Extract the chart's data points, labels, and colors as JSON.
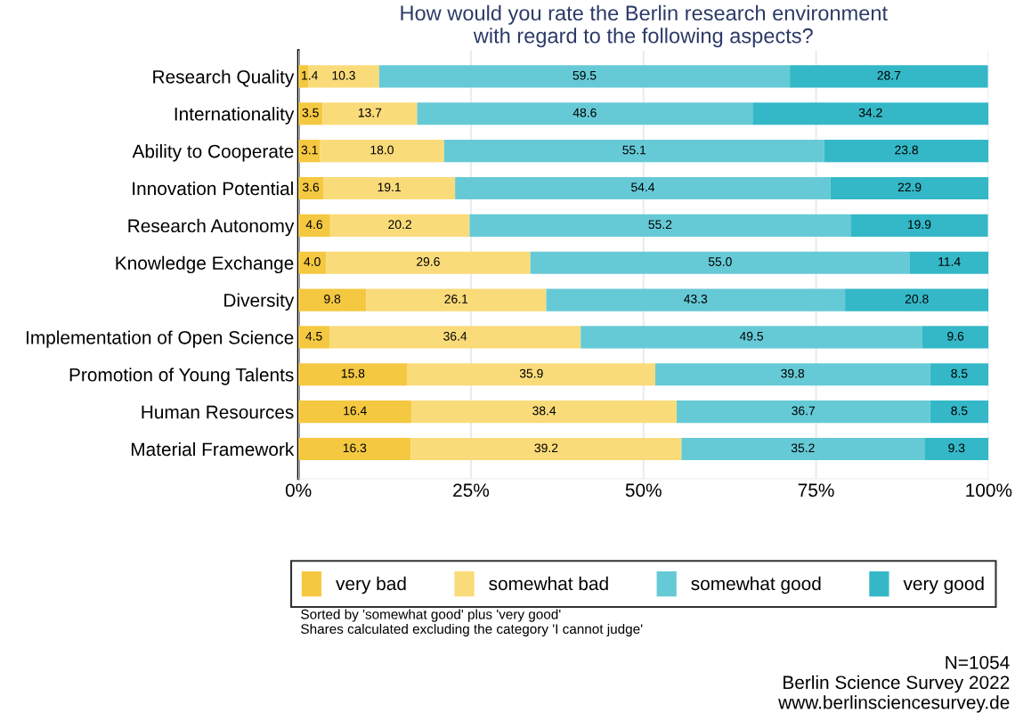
{
  "chart_data": {
    "type": "bar",
    "orientation": "horizontal",
    "stacked": true,
    "title": "How would you rate the Berlin research environment\nwith regard to the following aspects?",
    "categories": [
      "Research Quality",
      "Internationality",
      "Ability to Cooperate",
      "Innovation Potential",
      "Research Autonomy",
      "Knowledge Exchange",
      "Diversity",
      "Implementation of Open Science",
      "Promotion of Young Talents",
      "Human Resources",
      "Material Framework"
    ],
    "series": [
      {
        "name": "very bad",
        "color": "#f5c842",
        "values": [
          1.4,
          3.5,
          3.1,
          3.6,
          4.6,
          4.0,
          9.8,
          4.5,
          15.8,
          16.4,
          16.3
        ],
        "value_labels": [
          "1.4",
          "3.5",
          "3.1",
          "3.6",
          "4.6",
          "4.0",
          "9.8",
          "4.5",
          "15.8",
          "16.4",
          "16.3"
        ]
      },
      {
        "name": "somewhat bad",
        "color": "#fadb7a",
        "values": [
          10.3,
          13.7,
          18.0,
          19.1,
          20.2,
          29.6,
          26.1,
          36.4,
          35.9,
          38.4,
          39.2
        ],
        "value_labels": [
          "10.3",
          "13.7",
          "18.0",
          "19.1",
          "20.2",
          "29.6",
          "26.1",
          "36.4",
          "35.9",
          "38.4",
          "39.2"
        ]
      },
      {
        "name": "somewhat good",
        "color": "#66cad6",
        "values": [
          59.5,
          48.6,
          55.1,
          54.4,
          55.2,
          55.0,
          43.3,
          49.5,
          39.8,
          36.7,
          35.2
        ],
        "value_labels": [
          "59.5",
          "48.6",
          "55.1",
          "54.4",
          "55.2",
          "55.0",
          "43.3",
          "49.5",
          "39.8",
          "36.7",
          "35.2"
        ]
      },
      {
        "name": "very good",
        "color": "#34b8c7",
        "values": [
          28.7,
          34.2,
          23.8,
          22.9,
          19.9,
          11.4,
          20.8,
          9.6,
          8.5,
          8.5,
          9.3
        ],
        "value_labels": [
          "28.7",
          "34.2",
          "23.8",
          "22.9",
          "19.9",
          "11.4",
          "20.8",
          "9.6",
          "8.5",
          "8.5",
          "9.3"
        ]
      }
    ],
    "xlim": [
      0,
      100
    ],
    "xticks": [
      {
        "value": 0,
        "label": "0%"
      },
      {
        "value": 25,
        "label": "25%"
      },
      {
        "value": 50,
        "label": "50%"
      },
      {
        "value": 75,
        "label": "75%"
      },
      {
        "value": 100,
        "label": "100%"
      }
    ],
    "grid": "x",
    "legend": "bottom",
    "data_labels": true,
    "annotations": [
      "Sorted by 'somewhat good' plus 'very good'\nShares calculated excluding the category 'I cannot judge'",
      "N=1054\nBerlin Science Survey 2022\nwww.berlinsciencesurvey.de"
    ]
  }
}
